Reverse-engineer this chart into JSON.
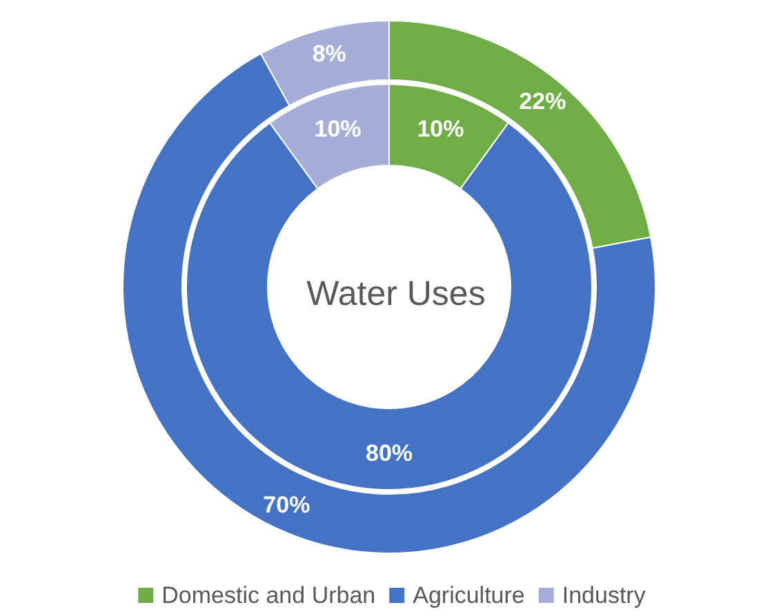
{
  "chart_data": {
    "type": "donut",
    "title": "Water Uses",
    "categories": [
      "Domestic and Urban",
      "Agriculture",
      "Industry"
    ],
    "colors": [
      "#70ad47",
      "#4472c4",
      "#a5aed6"
    ],
    "legend": "bottom",
    "series": [
      {
        "values": [
          22,
          70,
          8
        ],
        "value_labels": [
          "22%",
          "70%",
          "8%"
        ]
      },
      {
        "values": [
          10,
          80,
          10
        ],
        "value_labels": [
          "10%",
          "80%",
          "10%"
        ]
      }
    ]
  }
}
